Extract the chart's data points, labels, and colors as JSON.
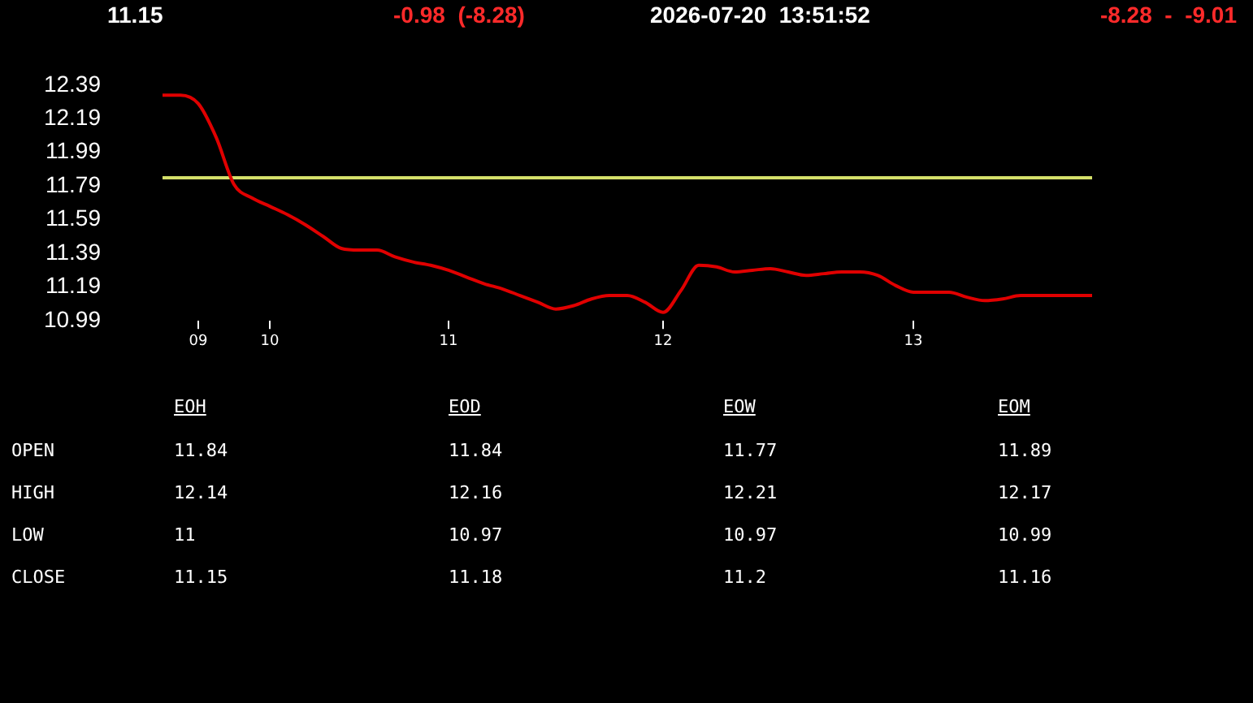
{
  "chart_data": [
    {
      "type": "line",
      "annotations": [
        "11.15",
        "-0.98  (-8.28)",
        "2026-07-20  13:51:52",
        "-8.28  -  -9.01"
      ],
      "categories": [
        null,
        null,
        "09",
        null,
        null,
        null,
        "10",
        null,
        null,
        null,
        null,
        null,
        null,
        null,
        null,
        null,
        "11",
        null,
        null,
        null,
        null,
        null,
        null,
        null,
        null,
        null,
        null,
        null,
        "12",
        null,
        null,
        null,
        null,
        null,
        null,
        null,
        null,
        null,
        null,
        null,
        null,
        null,
        "13",
        null,
        null,
        null,
        null,
        null,
        null,
        null,
        null,
        null,
        null
      ],
      "series": [
        {
          "color": "#e00000",
          "values": [
            12.33,
            12.33,
            12.28,
            12.08,
            11.8,
            11.72,
            11.67,
            11.62,
            11.56,
            11.49,
            11.42,
            11.41,
            11.41,
            11.37,
            11.34,
            11.32,
            11.29,
            11.25,
            11.21,
            11.18,
            11.14,
            11.1,
            11.06,
            11.08,
            11.12,
            11.14,
            11.14,
            11.1,
            11.04,
            11.17,
            11.32,
            11.31,
            11.28,
            11.29,
            11.3,
            11.28,
            11.26,
            11.27,
            11.28,
            11.28,
            11.26,
            11.2,
            11.16,
            11.16,
            11.16,
            11.13,
            11.11,
            11.12,
            11.14,
            11.14,
            11.14,
            11.14,
            11.14
          ]
        }
      ],
      "ylim": [
        10.99,
        12.39
      ],
      "yticks": [
        10.99,
        11.19,
        11.39,
        11.59,
        11.79,
        11.99,
        12.19,
        12.39
      ],
      "ref_lines": [
        {
          "axis": "y",
          "value": 11.84,
          "color": "#d4e06a"
        }
      ],
      "marker": "none",
      "line_style": "solid"
    },
    {
      "type": "other",
      "categories": [
        "EOH",
        "EOD",
        "EOW",
        "EOM"
      ],
      "y_categories": [
        "OPEN",
        "HIGH",
        "LOW",
        "CLOSE"
      ],
      "cell_labels": [
        [
          "11.84",
          "11.84",
          "11.77",
          "11.89"
        ],
        [
          "12.14",
          "12.16",
          "12.21",
          "12.17"
        ],
        [
          "11",
          "10.97",
          "10.97",
          "10.99"
        ],
        [
          "11.15",
          "11.18",
          "11.2",
          "11.16"
        ]
      ]
    }
  ]
}
